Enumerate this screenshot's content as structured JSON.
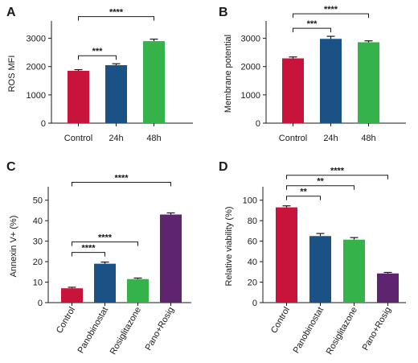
{
  "chart_data": [
    {
      "type": "bar",
      "panel": "A",
      "categories": [
        "Control",
        "24h",
        "48h"
      ],
      "values": [
        1850,
        2050,
        2900
      ],
      "errors": [
        40,
        50,
        70
      ],
      "colors": [
        "#c8133a",
        "#1a5286",
        "#35b34a"
      ],
      "ylabel": "ROS MFI",
      "ylim": [
        0,
        3500
      ],
      "yticks": [
        0,
        1000,
        2000,
        3000
      ],
      "comparisons": [
        {
          "from": 0,
          "to": 1,
          "label": "***"
        },
        {
          "from": 0,
          "to": 2,
          "label": "****"
        }
      ]
    },
    {
      "type": "bar",
      "panel": "B",
      "categories": [
        "Control",
        "24h",
        "48h"
      ],
      "values": [
        2290,
        2980,
        2860
      ],
      "errors": [
        50,
        90,
        50
      ],
      "colors": [
        "#c8133a",
        "#1a5286",
        "#35b34a"
      ],
      "ylabel": "Membrane potential",
      "ylim": [
        0,
        3500
      ],
      "yticks": [
        0,
        1000,
        2000,
        3000
      ],
      "comparisons": [
        {
          "from": 0,
          "to": 1,
          "label": "***"
        },
        {
          "from": 0,
          "to": 2,
          "label": "****"
        }
      ]
    },
    {
      "type": "bar",
      "panel": "C",
      "categories": [
        "Control",
        "Panobinostat",
        "Rosiglitazone",
        "Pano+Rosig"
      ],
      "values": [
        7,
        19,
        11.5,
        43
      ],
      "errors": [
        0.5,
        0.8,
        0.5,
        0.8
      ],
      "colors": [
        "#c8133a",
        "#1a5286",
        "#35b34a",
        "#5f2470"
      ],
      "ylabel": "Annexin V+ (%)",
      "ylim": [
        0,
        55
      ],
      "yticks": [
        0,
        10,
        20,
        30,
        40,
        50
      ],
      "comparisons": [
        {
          "from": 0,
          "to": 1,
          "label": "****"
        },
        {
          "from": 0,
          "to": 2,
          "label": "****"
        },
        {
          "from": 0,
          "to": 3,
          "label": "****"
        }
      ]
    },
    {
      "type": "bar",
      "panel": "D",
      "categories": [
        "Control",
        "Panobinostat",
        "Rosiglitazone",
        "Pano+Rosig"
      ],
      "values": [
        93,
        65,
        61.5,
        28.5
      ],
      "errors": [
        1.5,
        2.5,
        2,
        1
      ],
      "colors": [
        "#c8133a",
        "#1a5286",
        "#35b34a",
        "#5f2470"
      ],
      "ylabel": "Relative viability (%)",
      "ylim": [
        0,
        110
      ],
      "yticks": [
        0,
        20,
        40,
        60,
        80,
        100
      ],
      "comparisons": [
        {
          "from": 0,
          "to": 1,
          "label": "**"
        },
        {
          "from": 0,
          "to": 2,
          "label": "**"
        },
        {
          "from": 0,
          "to": 3,
          "label": "****"
        }
      ]
    }
  ]
}
